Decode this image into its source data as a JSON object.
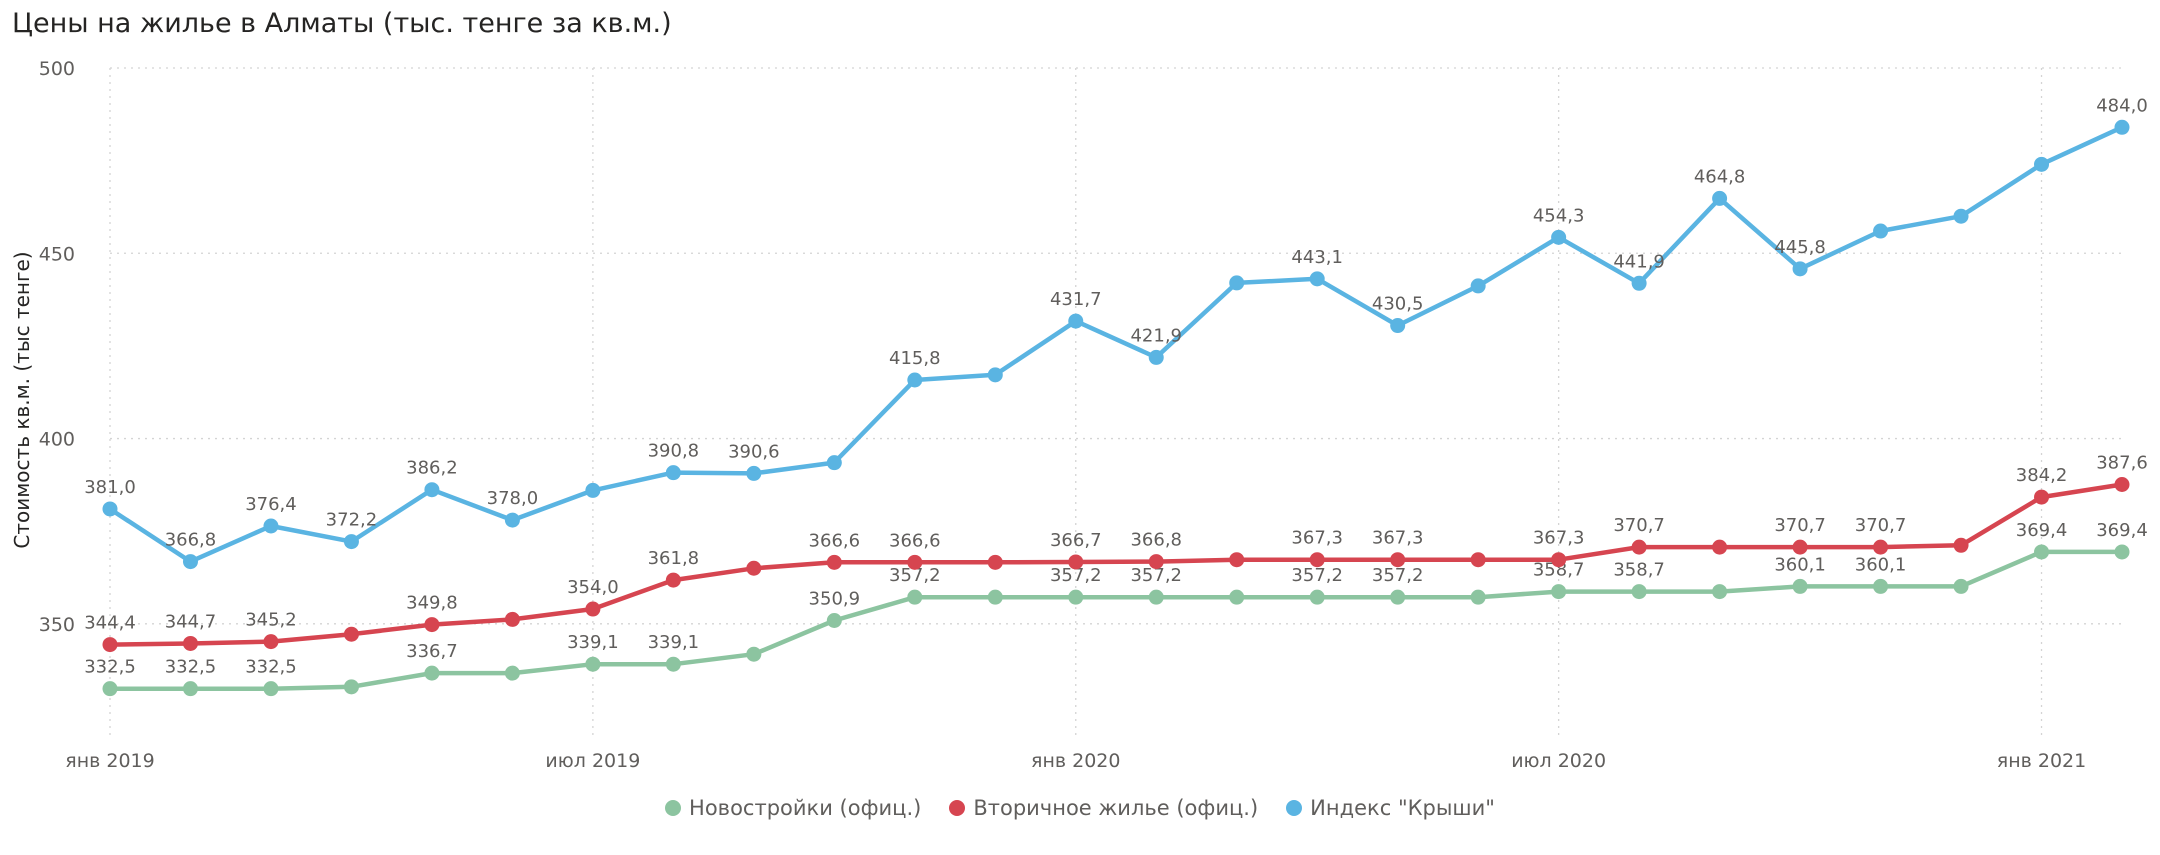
{
  "chart_data": {
    "type": "line",
    "title": "Цены на жилье в Алматы (тыс. тенге за кв.м.)",
    "ylabel": "Стоимость кв.м. (тыс тенге)",
    "xlabel": "",
    "ylim": [
      320,
      500
    ],
    "y_ticks": [
      350,
      400,
      450,
      500
    ],
    "y_tick_labels": [
      "350",
      "400",
      "450",
      "500"
    ],
    "x": [
      "2019-01",
      "2019-02",
      "2019-03",
      "2019-04",
      "2019-05",
      "2019-06",
      "2019-07",
      "2019-08",
      "2019-09",
      "2019-10",
      "2019-11",
      "2019-12",
      "2020-01",
      "2020-02",
      "2020-03",
      "2020-04",
      "2020-05",
      "2020-06",
      "2020-07",
      "2020-08",
      "2020-09",
      "2020-10",
      "2020-11",
      "2020-12",
      "2021-01",
      "2021-02"
    ],
    "x_ticks": [
      {
        "month": "2019-01",
        "label": "янв 2019"
      },
      {
        "month": "2019-07",
        "label": "июл 2019"
      },
      {
        "month": "2020-01",
        "label": "янв 2020"
      },
      {
        "month": "2020-07",
        "label": "июл 2020"
      },
      {
        "month": "2021-01",
        "label": "янв 2021"
      }
    ],
    "grid": true,
    "legend_position": "bottom",
    "series": [
      {
        "name": "Новостройки (офиц.)",
        "color": "#8cc4a0",
        "values": [
          332.5,
          332.5,
          332.5,
          333.0,
          336.7,
          336.7,
          339.1,
          339.1,
          341.8,
          350.9,
          357.2,
          357.2,
          357.2,
          357.2,
          357.2,
          357.2,
          357.2,
          357.2,
          358.7,
          358.7,
          358.7,
          360.1,
          360.1,
          360.1,
          369.4,
          369.4
        ],
        "labels": [
          "332,5",
          "332,5",
          "332,5",
          null,
          "336,7",
          null,
          "339,1",
          "339,1",
          null,
          "350,9",
          "357,2",
          null,
          "357,2",
          "357,2",
          null,
          "357,2",
          "357,2",
          null,
          "358,7",
          "358,7",
          null,
          "360,1",
          "360,1",
          null,
          "369,4",
          "369,4"
        ]
      },
      {
        "name": "Вторичное жилье (офиц.)",
        "color": "#d64550",
        "values": [
          344.4,
          344.7,
          345.2,
          347.2,
          349.8,
          351.2,
          354.0,
          361.8,
          365.0,
          366.6,
          366.6,
          366.6,
          366.7,
          366.8,
          367.3,
          367.3,
          367.3,
          367.3,
          367.3,
          370.7,
          370.7,
          370.7,
          370.7,
          371.2,
          384.2,
          387.6
        ],
        "labels": [
          "344,4",
          "344,7",
          "345,2",
          null,
          "349,8",
          null,
          "354,0",
          "361,8",
          null,
          "366,6",
          "366,6",
          null,
          "366,7",
          "366,8",
          null,
          "367,3",
          "367,3",
          null,
          "367,3",
          "370,7",
          null,
          "370,7",
          "370,7",
          null,
          "384,2",
          "387,6"
        ]
      },
      {
        "name": "Индекс \"Крыши\"",
        "color": "#5ab4e2",
        "values": [
          381.0,
          366.8,
          376.4,
          372.2,
          386.2,
          378.0,
          386.0,
          390.8,
          390.6,
          393.5,
          415.8,
          417.2,
          431.7,
          421.9,
          442.0,
          443.1,
          430.5,
          441.2,
          454.3,
          441.9,
          464.8,
          445.8,
          456.0,
          460.0,
          474.0,
          484.0
        ],
        "labels": [
          "381,0",
          "366,8",
          "376,4",
          "372,2",
          "386,2",
          "378,0",
          null,
          "390,8",
          "390,6",
          null,
          "415,8",
          null,
          "431,7",
          "421,9",
          null,
          "443,1",
          "430,5",
          null,
          "454,3",
          "441,9",
          "464,8",
          "445,8",
          null,
          null,
          null,
          "484,0"
        ]
      }
    ]
  }
}
